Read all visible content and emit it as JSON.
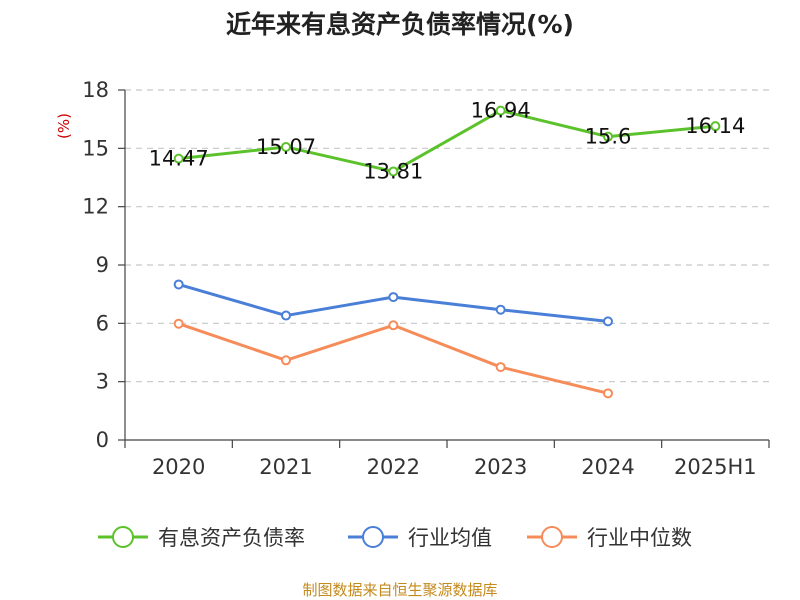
{
  "chart_data": {
    "type": "line",
    "title": "近年来有息资产负债率情况(%)",
    "ylabel": "(%)",
    "categories": [
      "2020",
      "2021",
      "2022",
      "2023",
      "2024",
      "2025H1"
    ],
    "ylim": [
      0,
      18
    ],
    "yticks": [
      "0",
      "3",
      "6",
      "9",
      "12",
      "15",
      "18"
    ],
    "grid": true,
    "legend": "bottom",
    "series": [
      {
        "name": "有息资产负债率",
        "values": [
          14.47,
          15.07,
          13.81,
          16.94,
          15.6,
          16.14
        ],
        "labels": [
          "14.47",
          "15.07",
          "13.81",
          "16.94",
          "15.6",
          "16.14"
        ],
        "color": "#5cc22b"
      },
      {
        "name": "行业均值",
        "values": [
          8.0,
          6.4,
          7.35,
          6.7,
          6.1,
          null
        ],
        "color": "#4a7fd8"
      },
      {
        "name": "行业中位数",
        "values": [
          5.98,
          4.1,
          5.9,
          3.75,
          2.4,
          null
        ],
        "color": "#f58c5a"
      }
    ]
  },
  "source": "制图数据来自恒生聚源数据库"
}
